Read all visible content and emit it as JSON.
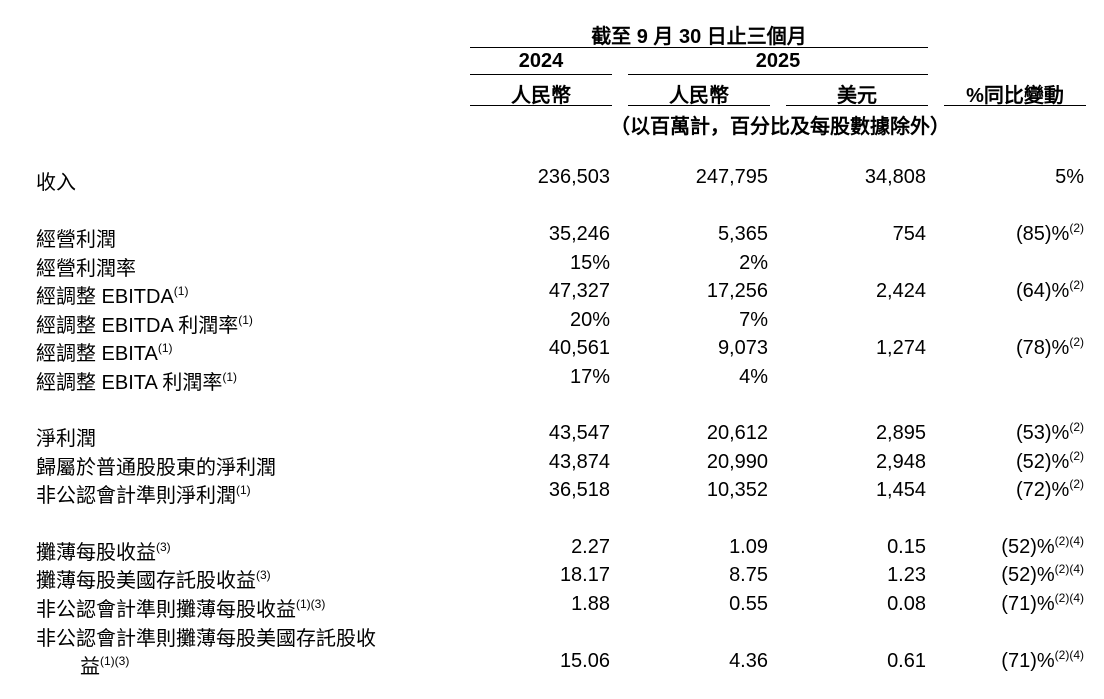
{
  "header": {
    "period": "截至 9 月 30 日止三個月",
    "year_2024": "2024",
    "year_2025": "2025",
    "currency_rmb_2024": "人民幣",
    "currency_rmb_2025": "人民幣",
    "currency_usd": "美元",
    "yoy_change": "%同比變動",
    "unit_note": "（以百萬計，百分比及每股數據除外）"
  },
  "rows": [
    {
      "label": "收入",
      "rmb2024": "236,503",
      "rmb2025": "247,795",
      "usd": "34,808",
      "yoy": "5%"
    },
    {
      "label": "經營利潤",
      "rmb2024": "35,246",
      "rmb2025": "5,365",
      "usd": "754",
      "yoy": "(85)%",
      "yoy_sup": "(2)"
    },
    {
      "label": "經營利潤率",
      "rmb2024": "15%",
      "rmb2025": "2%"
    },
    {
      "label": "經調整 EBITDA",
      "label_sup": "(1)",
      "rmb2024": "47,327",
      "rmb2025": "17,256",
      "usd": "2,424",
      "yoy": "(64)%",
      "yoy_sup": "(2)"
    },
    {
      "label": "經調整 EBITDA 利潤率",
      "label_sup": "(1)",
      "rmb2024": "20%",
      "rmb2025": "7%"
    },
    {
      "label": "經調整 EBITA",
      "label_sup": "(1)",
      "rmb2024": "40,561",
      "rmb2025": "9,073",
      "usd": "1,274",
      "yoy": "(78)%",
      "yoy_sup": "(2)"
    },
    {
      "label": "經調整 EBITA 利潤率",
      "label_sup": "(1)",
      "rmb2024": "17%",
      "rmb2025": "4%"
    },
    {
      "label": "淨利潤",
      "rmb2024": "43,547",
      "rmb2025": "20,612",
      "usd": "2,895",
      "yoy": "(53)%",
      "yoy_sup": "(2)"
    },
    {
      "label": "歸屬於普通股股東的淨利潤",
      "rmb2024": "43,874",
      "rmb2025": "20,990",
      "usd": "2,948",
      "yoy": "(52)%",
      "yoy_sup": "(2)"
    },
    {
      "label": "非公認會計準則淨利潤",
      "label_sup": "(1)",
      "rmb2024": "36,518",
      "rmb2025": "10,352",
      "usd": "1,454",
      "yoy": "(72)%",
      "yoy_sup": "(2)"
    },
    {
      "label": "攤薄每股收益",
      "label_sup": "(3)",
      "rmb2024": "2.27",
      "rmb2025": "1.09",
      "usd": "0.15",
      "yoy": "(52)%",
      "yoy_sup": "(2)(4)"
    },
    {
      "label": "攤薄每股美國存託股收益",
      "label_sup": "(3)",
      "rmb2024": "18.17",
      "rmb2025": "8.75",
      "usd": "1.23",
      "yoy": "(52)%",
      "yoy_sup": "(2)(4)"
    },
    {
      "label": "非公認會計準則攤薄每股收益",
      "label_sup": "(1)(3)",
      "rmb2024": "1.88",
      "rmb2025": "0.55",
      "usd": "0.08",
      "yoy": "(71)%",
      "yoy_sup": "(2)(4)"
    },
    {
      "label": "非公認會計準則攤薄每股美國存託股收",
      "label_cont": "益",
      "label_sup": "(1)(3)",
      "rmb2024": "15.06",
      "rmb2025": "4.36",
      "usd": "0.61",
      "yoy": "(71)%",
      "yoy_sup": "(2)(4)"
    }
  ]
}
